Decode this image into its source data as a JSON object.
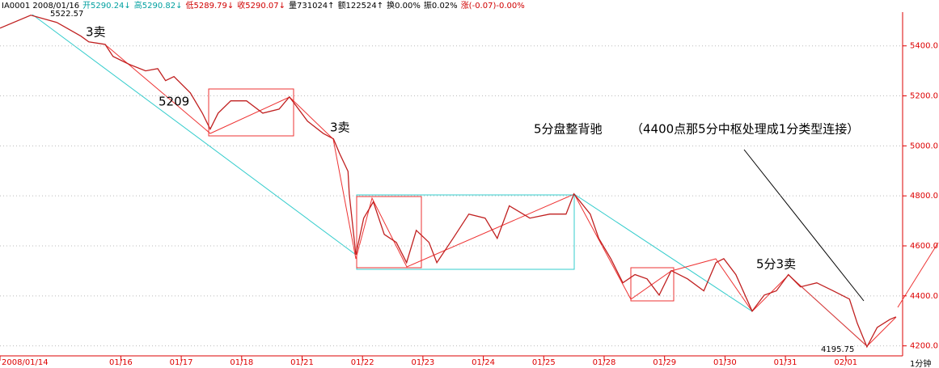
{
  "chart_data": {
    "type": "line",
    "header": [
      "IA0001 2008/01/16",
      "开5290.24↓",
      "高5290.82↓",
      "低5289.79↓",
      "收5290.07↓",
      "量731024↑",
      "额122524↑",
      "换0.00%",
      "振0.02%",
      "涨(-0.07)-0.00%"
    ],
    "header_colors": [
      "#000000",
      "#00a0a0",
      "#00a0a0",
      "#d00000",
      "#d00000",
      "#000000",
      "#000000",
      "#000000",
      "#000000",
      "#d00000"
    ],
    "period": "1分钟",
    "annotations": [
      "5522.57",
      "3卖",
      "5209",
      "3卖",
      "5分盘整背驰",
      "（4400点那5分中枢处理成1分类型连接）",
      "5分3卖",
      "4195.75"
    ],
    "x": [
      0,
      0.51,
      0.94,
      1.34,
      1.47,
      1.74,
      1.87,
      2.14,
      2.41,
      2.61,
      2.74,
      2.88,
      3.15,
      3.35,
      3.48,
      3.61,
      3.82,
      4.08,
      4.35,
      4.62,
      4.79,
      4.89,
      5.09,
      5.35,
      5.52,
      5.62,
      5.76,
      5.78,
      5.89,
      6.02,
      6.18,
      6.36,
      6.56,
      6.73,
      6.89,
      7.1,
      7.23,
      7.5,
      7.76,
      8.03,
      8.23,
      8.43,
      8.77,
      9.1,
      9.37,
      9.5,
      9.77,
      9.91,
      10.11,
      10.31,
      10.51,
      10.71,
      10.91,
      11.11,
      11.38,
      11.65,
      11.85,
      11.98,
      12.18,
      12.45,
      12.65,
      12.85,
      13.05,
      13.25,
      13.52,
      13.79,
      14.06,
      14.19,
      14.35,
      14.52,
      14.73,
      14.83
    ],
    "values": [
      5471,
      5522.57,
      5494,
      5439,
      5416,
      5406,
      5358,
      5326,
      5300,
      5309,
      5261,
      5277,
      5212,
      5131,
      5067,
      5131,
      5180,
      5180,
      5131,
      5147,
      5196,
      5164,
      5099,
      5050,
      5028,
      4970,
      4898,
      4808,
      4565,
      4711,
      4776,
      4646,
      4614,
      4533,
      4662,
      4614,
      4533,
      4630,
      4727,
      4711,
      4630,
      4760,
      4711,
      4727,
      4727,
      4808,
      4727,
      4630,
      4549,
      4452,
      4485,
      4468,
      4403,
      4501,
      4468,
      4420,
      4533,
      4549,
      4485,
      4339,
      4403,
      4420,
      4485,
      4436,
      4452,
      4420,
      4387,
      4290,
      4195.75,
      4274,
      4306,
      4316
    ],
    "color": "#c02020",
    "xlim": [
      0,
      14.9
    ],
    "xticks": [
      {
        "value": 0,
        "label": "2008/01/14"
      },
      {
        "value": 2,
        "label": "01/16"
      },
      {
        "value": 3,
        "label": "01/17"
      },
      {
        "value": 4,
        "label": "01/18"
      },
      {
        "value": 5,
        "label": "01/21"
      },
      {
        "value": 6,
        "label": "01/22"
      },
      {
        "value": 7,
        "label": "01/23"
      },
      {
        "value": 8,
        "label": "01/24"
      },
      {
        "value": 9,
        "label": "01/25"
      },
      {
        "value": 10,
        "label": "01/28"
      },
      {
        "value": 11,
        "label": "01/29"
      },
      {
        "value": 12,
        "label": "01/30"
      },
      {
        "value": 13,
        "label": "01/31"
      },
      {
        "value": 14,
        "label": "02/01"
      }
    ],
    "ylim": [
      4160,
      5535
    ],
    "yticks": [
      {
        "value": 4200,
        "label": "4200.0"
      },
      {
        "value": 4400,
        "label": "4400.0"
      },
      {
        "value": 4600,
        "label": "4600.0"
      },
      {
        "value": 4800,
        "label": "4800.0"
      },
      {
        "value": 5000,
        "label": "5000.0"
      },
      {
        "value": 5200,
        "label": "5200.0"
      },
      {
        "value": 5400,
        "label": "5400.0"
      }
    ],
    "grid": true
  }
}
